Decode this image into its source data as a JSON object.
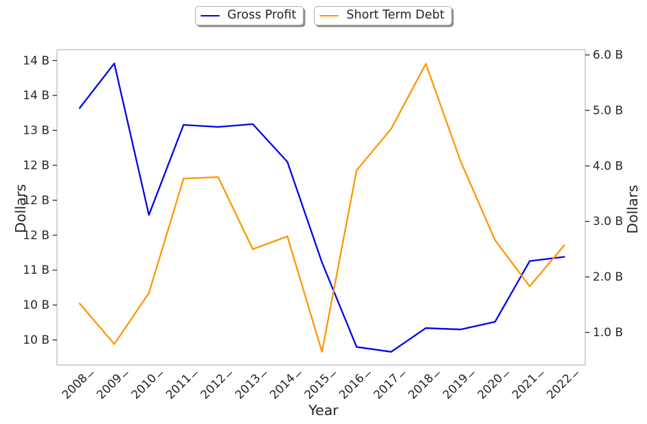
{
  "legend": [
    {
      "label": "Gross Profit",
      "color": "#0000ee"
    },
    {
      "label": "Short Term Debt",
      "color": "#ff9500"
    }
  ],
  "axes": {
    "left_title": "Dollars",
    "right_title": "Dollars",
    "x_title": "Year"
  },
  "chart_data": {
    "type": "line",
    "title": "",
    "xlabel": "Year",
    "ylabel_left": "Dollars",
    "ylabel_right": "Dollars",
    "grid": false,
    "legend_position": "top-center",
    "values_unit": "billions of dollars",
    "x": [
      2008,
      2009,
      2010,
      2011,
      2012,
      2013,
      2014,
      2015,
      2016,
      2017,
      2018,
      2019,
      2020,
      2021,
      2022
    ],
    "series": [
      {
        "name": "Gross Profit",
        "axis": "left",
        "color": "#0000ee",
        "values": [
          13.32,
          13.96,
          11.79,
          13.08,
          13.05,
          13.09,
          12.55,
          11.11,
          9.9,
          9.83,
          10.17,
          10.15,
          10.26,
          11.13,
          11.19
        ]
      },
      {
        "name": "Short Term Debt",
        "axis": "right",
        "color": "#ff9500",
        "values": [
          1.52,
          0.79,
          1.71,
          3.77,
          3.8,
          2.5,
          2.73,
          0.65,
          3.92,
          4.67,
          5.84,
          4.09,
          2.66,
          1.83,
          2.57
        ]
      }
    ],
    "left_axis": {
      "range": [
        9.64,
        14.15
      ],
      "ticks": [
        14.0,
        13.5,
        13.0,
        12.5,
        12.0,
        11.5,
        11.0,
        10.5,
        10.0
      ],
      "tick_labels": [
        "14 B",
        "14 B",
        "13 B",
        "12 B",
        "12 B",
        "12 B",
        "11 B",
        "10 B",
        "10 B"
      ]
    },
    "right_axis": {
      "range": [
        0.43,
        6.09
      ],
      "ticks": [
        6.0,
        5.0,
        4.0,
        3.0,
        2.0,
        1.0
      ],
      "tick_labels": [
        "6.0 B",
        "5.0 B",
        "4.0 B",
        "3.0 B",
        "2.0 B",
        "1.0 B"
      ]
    },
    "x_tick_labels": [
      "2008",
      "2009",
      "2010",
      "2011",
      "2012",
      "2013",
      "2014",
      "2015",
      "2016",
      "2017",
      "2018",
      "2019",
      "2020",
      "2021",
      "2022"
    ]
  }
}
